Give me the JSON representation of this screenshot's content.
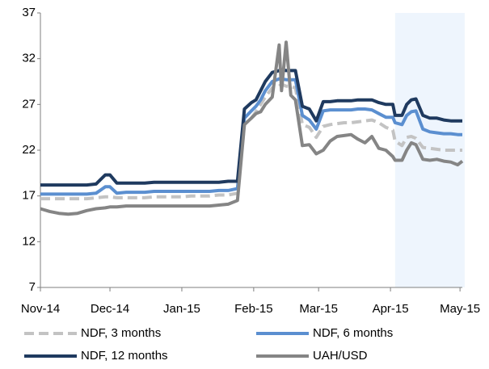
{
  "chart_data": {
    "type": "line",
    "x": [
      0,
      4,
      8,
      12,
      16,
      20,
      24,
      28,
      30,
      33,
      37,
      41,
      45,
      49,
      53,
      57,
      61,
      65,
      69,
      73,
      77,
      81,
      85,
      88,
      91,
      93,
      95,
      97,
      100,
      103,
      104,
      106,
      108,
      110,
      113,
      116,
      119,
      122,
      125,
      128,
      131,
      134,
      137,
      140,
      143,
      146,
      149,
      152,
      153,
      156,
      158,
      160,
      162,
      165,
      168,
      171,
      174,
      177,
      180,
      182
    ],
    "xlim": [
      0,
      182
    ],
    "xticks": [
      {
        "value": 0,
        "label": "Nov-14"
      },
      {
        "value": 30,
        "label": "Dec-14"
      },
      {
        "value": 61,
        "label": "Jan-15"
      },
      {
        "value": 92,
        "label": "Feb-15"
      },
      {
        "value": 120,
        "label": "Mar-15"
      },
      {
        "value": 151,
        "label": "Apr-15"
      },
      {
        "value": 181,
        "label": "May-15"
      }
    ],
    "ylim": [
      7,
      37
    ],
    "yticks": [
      7,
      12,
      17,
      22,
      27,
      32,
      37
    ],
    "grid": false,
    "highlight_xrange": [
      153,
      183
    ],
    "highlight_color": "#eef5fd",
    "series": [
      {
        "name": "NDF, 3 months",
        "color": "#c3c3c3",
        "dashed": true,
        "values": [
          16.7,
          16.7,
          16.7,
          16.7,
          16.7,
          16.7,
          16.8,
          16.9,
          16.9,
          16.8,
          16.8,
          16.8,
          16.8,
          16.9,
          16.9,
          16.9,
          16.9,
          17.0,
          17.0,
          17.0,
          17.1,
          17.1,
          17.3,
          24.8,
          25.5,
          26.2,
          27.0,
          27.8,
          28.8,
          29.0,
          29.2,
          29.0,
          29.0,
          28.8,
          24.8,
          24.5,
          23.4,
          24.6,
          24.8,
          24.9,
          25.0,
          25.0,
          25.1,
          25.2,
          25.3,
          25.0,
          24.5,
          24.2,
          23.0,
          22.5,
          23.4,
          23.5,
          23.3,
          22.3,
          22.2,
          22.1,
          22.0,
          22.0,
          22.0,
          22.0
        ]
      },
      {
        "name": "NDF, 6 months",
        "color": "#5b8fd0",
        "dashed": false,
        "values": [
          17.2,
          17.2,
          17.2,
          17.2,
          17.2,
          17.2,
          17.3,
          18.0,
          18.0,
          17.3,
          17.4,
          17.4,
          17.4,
          17.5,
          17.5,
          17.5,
          17.5,
          17.5,
          17.5,
          17.5,
          17.6,
          17.6,
          17.8,
          25.5,
          26.3,
          26.8,
          27.5,
          28.5,
          29.5,
          29.8,
          29.8,
          29.7,
          29.7,
          29.7,
          25.8,
          25.3,
          24.3,
          26.3,
          26.4,
          26.4,
          26.4,
          26.4,
          26.5,
          26.5,
          26.4,
          26.0,
          25.6,
          25.6,
          25.0,
          24.8,
          25.8,
          26.2,
          26.3,
          24.3,
          24.0,
          23.9,
          23.8,
          23.8,
          23.7,
          23.7
        ]
      },
      {
        "name": "NDF, 12 months",
        "color": "#1f3a5f",
        "dashed": false,
        "values": [
          18.2,
          18.2,
          18.2,
          18.2,
          18.2,
          18.2,
          18.3,
          19.3,
          19.3,
          18.4,
          18.4,
          18.4,
          18.4,
          18.5,
          18.5,
          18.5,
          18.5,
          18.5,
          18.5,
          18.5,
          18.5,
          18.6,
          18.6,
          26.5,
          27.2,
          27.5,
          28.5,
          29.5,
          30.5,
          30.7,
          30.8,
          30.7,
          30.7,
          30.7,
          26.8,
          26.5,
          25.2,
          27.3,
          27.3,
          27.4,
          27.4,
          27.4,
          27.5,
          27.5,
          27.5,
          27.2,
          27.0,
          27.0,
          25.8,
          25.8,
          27.0,
          27.5,
          27.6,
          25.8,
          25.5,
          25.5,
          25.3,
          25.2,
          25.2,
          25.2
        ]
      },
      {
        "name": "UAH/USD",
        "color": "#858585",
        "dashed": false,
        "values": [
          15.6,
          15.3,
          15.1,
          15.0,
          15.1,
          15.4,
          15.6,
          15.7,
          15.8,
          15.8,
          15.9,
          15.9,
          15.9,
          15.9,
          15.9,
          15.9,
          15.9,
          15.9,
          15.9,
          15.9,
          16.0,
          16.1,
          16.5,
          24.8,
          25.5,
          26.0,
          26.2,
          27.0,
          27.8,
          33.5,
          28.5,
          33.8,
          28.0,
          27.5,
          22.5,
          22.6,
          21.6,
          22.0,
          23.0,
          23.5,
          23.6,
          23.7,
          23.2,
          22.8,
          23.5,
          22.2,
          22.0,
          21.3,
          20.9,
          20.9,
          22.0,
          22.8,
          22.6,
          21.0,
          20.9,
          21.0,
          20.8,
          20.7,
          20.4,
          20.8
        ]
      }
    ]
  }
}
